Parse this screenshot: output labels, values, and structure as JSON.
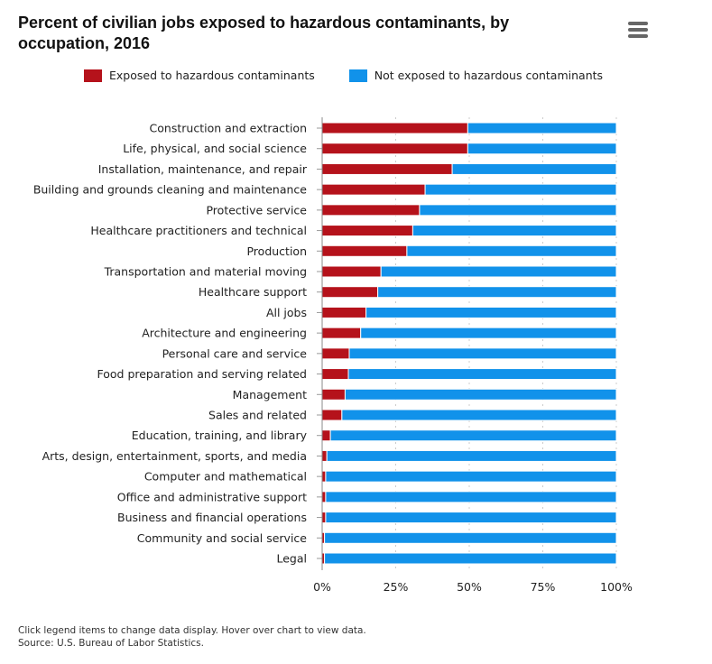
{
  "title": "Percent of civilian jobs exposed to hazardous contaminants, by occupation, 2016",
  "menu_icon": "hamburger-menu-icon",
  "colors": {
    "exposed": "#b5121b",
    "not_exposed": "#1192ea"
  },
  "footer": {
    "line1": "Click legend items to change data display. Hover over chart to view data.",
    "line2": "Source: U.S. Bureau of Labor Statistics."
  },
  "chart_data": {
    "type": "bar",
    "orientation": "horizontal",
    "stacking": "percent",
    "legend_position": "top",
    "xlim": [
      0,
      100
    ],
    "ticks": [
      "0%",
      "25%",
      "50%",
      "75%",
      "100%"
    ],
    "grid": true,
    "categories": [
      "Construction and extraction",
      "Life, physical, and social science",
      "Installation, maintenance, and repair",
      "Building and grounds cleaning and maintenance",
      "Protective service",
      "Healthcare practitioners and technical",
      "Production",
      "Transportation and material moving",
      "Healthcare support",
      "All jobs",
      "Architecture and engineering",
      "Personal care and service",
      "Food preparation and serving related",
      "Management",
      "Sales and related",
      "Education, training, and library",
      "Arts, design, entertainment, sports, and media",
      "Computer and mathematical",
      "Office and administrative support",
      "Business and financial operations",
      "Community and social service",
      "Legal"
    ],
    "series": [
      {
        "name": "Exposed to hazardous contaminants",
        "values": [
          49.5,
          49.5,
          44.2,
          35.0,
          33.1,
          30.8,
          28.8,
          20.0,
          18.9,
          14.9,
          13.1,
          9.2,
          8.9,
          7.8,
          6.7,
          2.8,
          1.6,
          1.2,
          1.2,
          1.2,
          0.8,
          0.8
        ]
      },
      {
        "name": "Not exposed to hazardous contaminants",
        "values": [
          50.5,
          50.5,
          55.8,
          65.0,
          66.9,
          69.2,
          71.2,
          80.0,
          81.1,
          85.1,
          86.9,
          90.8,
          91.1,
          92.2,
          93.3,
          97.2,
          98.4,
          98.8,
          98.8,
          98.8,
          99.2,
          99.2
        ]
      }
    ]
  }
}
